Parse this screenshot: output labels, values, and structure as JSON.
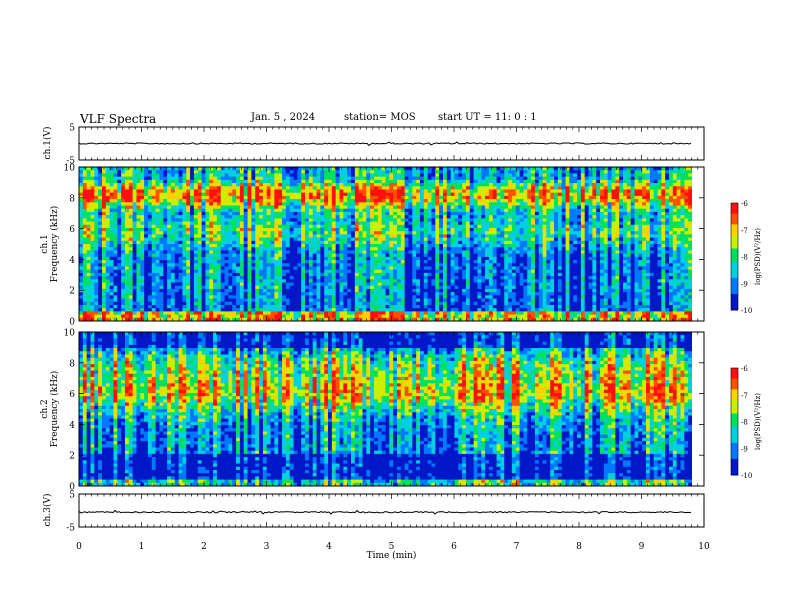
{
  "header": {
    "title": "VLF Spectra",
    "date": "Jan. 5 , 2024",
    "station": "station= MOS",
    "start": "start  UT =  11: 0  : 1"
  },
  "chart_data": [
    {
      "type": "line",
      "name": "ch1-waveform",
      "ylabel": "ch.1(V)",
      "ylim": [
        -5,
        5
      ],
      "yticks": [
        "5",
        "-5"
      ],
      "xlim": [
        0,
        10
      ],
      "series": [
        {
          "name": "ch.1",
          "baseline": 0
        }
      ]
    },
    {
      "type": "heatmap",
      "name": "ch1-spectrogram",
      "ylabel": "ch.1\nFrequency (kHz)",
      "xlim": [
        0,
        10
      ],
      "ylim": [
        0,
        10
      ],
      "yticks": [
        "0",
        "2",
        "4",
        "6",
        "8",
        "10"
      ],
      "colorbar": {
        "label": "log(PSD)(V²/Hz)",
        "min": -10,
        "max": -6,
        "ticks": [
          "-6",
          "-7",
          "-8",
          "-9",
          "-10"
        ]
      }
    },
    {
      "type": "heatmap",
      "name": "ch2-spectrogram",
      "ylabel": "ch.2\nFrequency (kHz)",
      "xlim": [
        0,
        10
      ],
      "ylim": [
        0,
        10
      ],
      "yticks": [
        "0",
        "2",
        "4",
        "6",
        "8",
        "10"
      ],
      "colorbar": {
        "label": "log(PSD)(V²/Hz)",
        "min": -10,
        "max": -6,
        "ticks": [
          "-6",
          "-7",
          "-8",
          "-9",
          "-10"
        ]
      }
    },
    {
      "type": "line",
      "name": "ch3-waveform",
      "ylabel": "ch.3(V)",
      "ylim": [
        -5,
        5
      ],
      "yticks": [
        "5",
        "-5"
      ],
      "xlim": [
        0,
        10
      ],
      "xlabel": "Time  (min)",
      "xticks": [
        "0",
        "1",
        "2",
        "3",
        "4",
        "5",
        "6",
        "7",
        "8",
        "9",
        "10"
      ],
      "series": [
        {
          "name": "ch.3",
          "baseline": -0.5
        }
      ]
    }
  ]
}
